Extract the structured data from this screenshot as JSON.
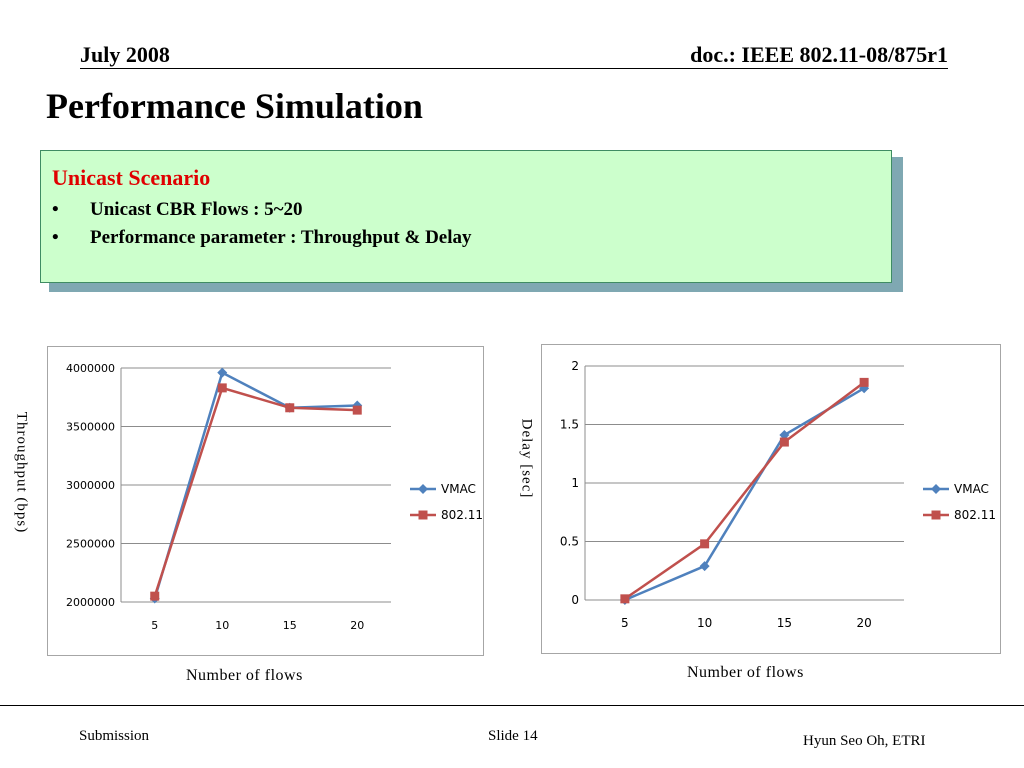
{
  "header": {
    "date": "July 2008",
    "doc": "doc.: IEEE 802.11-08/875r1"
  },
  "title": "Performance Simulation",
  "scenario_box": {
    "title": "Unicast Scenario",
    "bullet": "•",
    "items": [
      "Unicast CBR Flows : 5~20",
      "Performance parameter : Throughput & Delay"
    ]
  },
  "colors": {
    "vmac": "#4f81bd",
    "ieee": "#c0504d",
    "box_bg": "#ccffcc",
    "box_title": "#e00000"
  },
  "charts": {
    "throughput": {
      "ylabel": "Throughput (bps)",
      "xlabel": "Number of flows"
    },
    "delay": {
      "ylabel": "Delay [sec]",
      "xlabel": "Number of flows"
    }
  },
  "chart_data": [
    {
      "type": "line",
      "categories": [
        "5",
        "10",
        "15",
        "20"
      ],
      "ylim": [
        2000000,
        4000000
      ],
      "yticks": [
        "4000000",
        "3500000",
        "3000000",
        "2500000",
        "2000000"
      ],
      "ytick_values": [
        4000000,
        3500000,
        3000000,
        2500000,
        2000000
      ],
      "grid": true,
      "legend_position": "right",
      "series": [
        {
          "name": "VMAC",
          "marker": "diamond",
          "values": [
            2030000,
            3960000,
            3660000,
            3680000
          ]
        },
        {
          "name": "802.11",
          "marker": "square",
          "values": [
            2050000,
            3830000,
            3660000,
            3640000
          ]
        }
      ]
    },
    {
      "type": "line",
      "categories": [
        "5",
        "10",
        "15",
        "20"
      ],
      "ylim": [
        0,
        2
      ],
      "yticks": [
        "2",
        "1.5",
        "1",
        "0.5",
        "0"
      ],
      "ytick_values": [
        2,
        1.5,
        1,
        0.5,
        0
      ],
      "grid": true,
      "legend_position": "right",
      "series": [
        {
          "name": "VMAC",
          "marker": "diamond",
          "values": [
            0.0,
            0.29,
            1.41,
            1.81
          ]
        },
        {
          "name": "802.11",
          "marker": "square",
          "values": [
            0.01,
            0.48,
            1.35,
            1.86
          ]
        }
      ]
    }
  ],
  "footer": {
    "left": "Submission",
    "slide": "Slide 14",
    "author": "Hyun Seo Oh, ETRI"
  }
}
